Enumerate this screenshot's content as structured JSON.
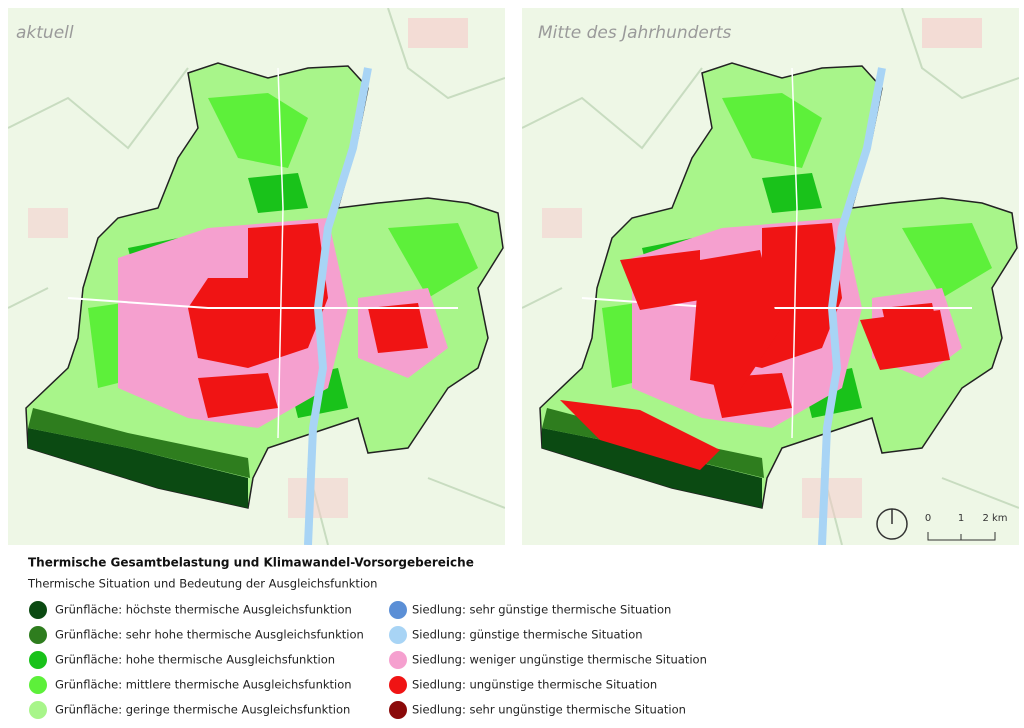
{
  "maps": [
    {
      "label": "aktuell"
    },
    {
      "label": "Mitte des Jahrhunderts"
    }
  ],
  "scale_bar": {
    "ticks": [
      "0",
      "1",
      "2 km"
    ]
  },
  "legend": {
    "title": "Thermische Gesamtbelastung und Klimawandel-Vorsorgebereiche",
    "subtitle": "Thermische Situation und Bedeutung der Ausgleichsfunktion",
    "items": [
      {
        "label": "Grünfläche: höchste thermische Ausgleichsfunktion",
        "color": "#0b4a12"
      },
      {
        "label": "Grünfläche: sehr hohe thermische Ausgleichsfunktion",
        "color": "#2e7d1e"
      },
      {
        "label": "Grünfläche: hohe thermische Ausgleichsfunktion",
        "color": "#19c21a"
      },
      {
        "label": "Grünfläche: mittlere thermische Ausgleichsfunktion",
        "color": "#5df03a"
      },
      {
        "label": "Grünfläche: geringe thermische Ausgleichsfunktion",
        "color": "#a8f58a"
      },
      {
        "label": "Siedlung: sehr günstige thermische Situation",
        "color": "#5b8fd6"
      },
      {
        "label": "Siedlung: günstige thermische Situation",
        "color": "#a8d4f5"
      },
      {
        "label": "Siedlung: weniger ungünstige thermische Situation",
        "color": "#f5a0cf"
      },
      {
        "label": "Siedlung: ungünstige thermische Situation",
        "color": "#f01414"
      },
      {
        "label": "Siedlung: sehr ungünstige thermische Situation",
        "color": "#8b0a0a"
      }
    ]
  }
}
